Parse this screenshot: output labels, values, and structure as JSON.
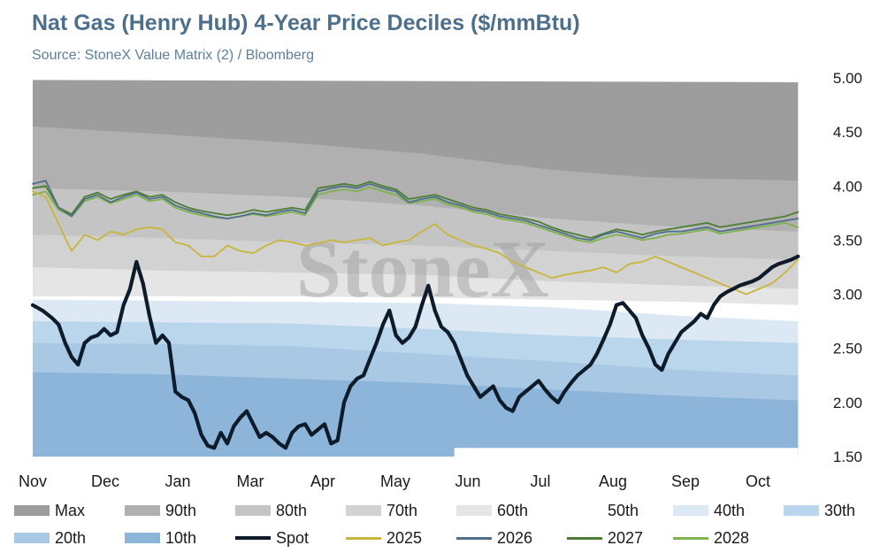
{
  "header": {
    "title": "Nat Gas (Henry Hub) 4-Year Price Deciles ($/mmBtu)",
    "subtitle": "Source: StoneX Value Matrix (2) / Bloomberg"
  },
  "watermark": "StoneX",
  "chart_data": {
    "type": "area",
    "title": "Nat Gas (Henry Hub) 4-Year Price Deciles ($/mmBtu)",
    "subtitle": "Source: StoneX Value Matrix (2) / Bloomberg",
    "x_tick_labels": [
      "Nov",
      "Dec",
      "Jan",
      "Mar",
      "Apr",
      "May",
      "Jun",
      "Jul",
      "Aug",
      "Sep",
      "Oct"
    ],
    "x_range": [
      0,
      12
    ],
    "y_tick_labels": [
      "5.00",
      "4.50",
      "4.00",
      "3.50",
      "3.00",
      "2.50",
      "2.00",
      "1.50"
    ],
    "ylim": [
      1.5,
      5.0
    ],
    "y_axis_position": "right",
    "grid": false,
    "legend_position": "bottom",
    "deciles": [
      {
        "name": "Max",
        "color": "#9d9d9d",
        "x": [
          0,
          11.8
        ],
        "values": [
          4.98,
          4.96
        ]
      },
      {
        "name": "90th",
        "color": "#b0b0b0",
        "x": [
          0,
          2,
          4,
          6,
          8,
          9.5,
          11.8
        ],
        "values": [
          4.55,
          4.48,
          4.4,
          4.3,
          4.15,
          4.08,
          4.05
        ]
      },
      {
        "name": "80th",
        "color": "#c4c4c4",
        "x": [
          0,
          2,
          4,
          6,
          8,
          10,
          11.8
        ],
        "values": [
          3.98,
          3.95,
          3.9,
          3.82,
          3.7,
          3.62,
          3.58
        ]
      },
      {
        "name": "70th",
        "color": "#d2d2d2",
        "x": [
          0,
          2,
          4,
          6,
          8,
          10,
          11.8
        ],
        "values": [
          3.55,
          3.52,
          3.48,
          3.45,
          3.4,
          3.35,
          3.32
        ]
      },
      {
        "name": "60th",
        "color": "#e5e5e5",
        "x": [
          0,
          2,
          4,
          6,
          8,
          10,
          11.8
        ],
        "values": [
          3.25,
          3.22,
          3.2,
          3.18,
          3.12,
          3.08,
          3.05
        ]
      },
      {
        "name": "50th",
        "color": "#ffffff",
        "x": [
          0,
          2,
          4,
          6,
          8,
          10,
          11.8
        ],
        "values": [
          2.98,
          2.98,
          2.98,
          2.97,
          2.95,
          2.93,
          2.9
        ]
      },
      {
        "name": "40th",
        "color": "#dce9f5",
        "x": [
          0,
          2,
          4,
          6,
          8,
          10,
          11.8
        ],
        "values": [
          2.95,
          2.94,
          2.93,
          2.92,
          2.88,
          2.8,
          2.75
        ]
      },
      {
        "name": "30th",
        "color": "#bad6ec",
        "x": [
          0,
          2,
          4,
          6,
          8,
          10,
          11.8
        ],
        "values": [
          2.75,
          2.74,
          2.73,
          2.68,
          2.62,
          2.58,
          2.55
        ]
      },
      {
        "name": "20th",
        "color": "#a9c8e3",
        "x": [
          0,
          2,
          4,
          6,
          8,
          10,
          11.8
        ],
        "values": [
          2.55,
          2.54,
          2.52,
          2.45,
          2.38,
          2.3,
          2.25
        ]
      },
      {
        "name": "10th",
        "color": "#8db5da",
        "x": [
          0,
          2,
          4,
          6,
          8,
          10,
          11.8
        ],
        "values": [
          2.28,
          2.26,
          2.22,
          2.18,
          2.12,
          2.06,
          2.02
        ]
      }
    ],
    "floor": {
      "x": [
        0,
        6.5,
        6.5,
        11.8
      ],
      "values": [
        1.5,
        1.5,
        1.58,
        1.58
      ]
    },
    "series": [
      {
        "name": "Spot",
        "color": "#0d1b2a",
        "stroke_width": 4.2,
        "x": [
          0,
          0.15,
          0.3,
          0.4,
          0.5,
          0.6,
          0.7,
          0.8,
          0.9,
          1.0,
          1.1,
          1.2,
          1.3,
          1.4,
          1.5,
          1.6,
          1.65,
          1.7,
          1.8,
          1.9,
          2.0,
          2.1,
          2.2,
          2.3,
          2.4,
          2.5,
          2.6,
          2.7,
          2.8,
          2.9,
          3.0,
          3.1,
          3.2,
          3.3,
          3.4,
          3.5,
          3.6,
          3.7,
          3.8,
          3.9,
          4.0,
          4.1,
          4.2,
          4.3,
          4.4,
          4.5,
          4.6,
          4.7,
          4.8,
          4.9,
          5.0,
          5.1,
          5.2,
          5.3,
          5.4,
          5.5,
          5.6,
          5.7,
          5.8,
          5.9,
          6.0,
          6.1,
          6.2,
          6.3,
          6.4,
          6.5,
          6.6,
          6.7,
          6.8,
          6.9,
          7.0,
          7.1,
          7.2,
          7.3,
          7.4,
          7.5,
          7.6,
          7.7,
          7.8,
          7.9,
          8.0,
          8.1,
          8.2,
          8.3,
          8.4,
          8.5,
          8.6,
          8.7,
          8.8,
          8.9,
          9.0,
          9.1,
          9.2,
          9.3,
          9.4,
          9.5,
          9.6,
          9.7,
          9.8,
          9.9,
          10.0,
          10.1,
          10.2,
          10.3,
          10.4,
          10.5,
          10.6,
          10.7,
          10.8,
          10.9,
          11.0,
          11.1,
          11.2,
          11.3,
          11.4,
          11.5,
          11.6,
          11.7,
          11.8
        ],
        "values": [
          2.9,
          2.85,
          2.78,
          2.72,
          2.55,
          2.42,
          2.35,
          2.55,
          2.6,
          2.62,
          2.68,
          2.62,
          2.65,
          2.9,
          3.05,
          3.3,
          3.2,
          3.1,
          2.8,
          2.55,
          2.62,
          2.55,
          2.1,
          2.05,
          2.02,
          1.9,
          1.7,
          1.6,
          1.58,
          1.72,
          1.62,
          1.78,
          1.86,
          1.92,
          1.8,
          1.68,
          1.72,
          1.68,
          1.62,
          1.58,
          1.72,
          1.78,
          1.8,
          1.7,
          1.75,
          1.8,
          1.62,
          1.65,
          2.0,
          2.15,
          2.22,
          2.25,
          2.4,
          2.55,
          2.72,
          2.85,
          2.62,
          2.55,
          2.6,
          2.7,
          2.9,
          3.08,
          2.85,
          2.7,
          2.65,
          2.55,
          2.4,
          2.25,
          2.15,
          2.05,
          2.1,
          2.15,
          2.02,
          1.95,
          1.92,
          2.05,
          2.1,
          2.15,
          2.2,
          2.12,
          2.05,
          2.0,
          2.1,
          2.18,
          2.25,
          2.3,
          2.35,
          2.45,
          2.58,
          2.72,
          2.9,
          2.92,
          2.85,
          2.78,
          2.62,
          2.5,
          2.35,
          2.3,
          2.45,
          2.55,
          2.65,
          2.7,
          2.75,
          2.82,
          2.78,
          2.9,
          2.98,
          3.02,
          3.05,
          3.08,
          3.1,
          3.12,
          3.15,
          3.2,
          3.25,
          3.28,
          3.3,
          3.32,
          3.35
        ]
      },
      {
        "name": "2025",
        "color": "#c8b53b",
        "stroke_width": 1.8,
        "x": [
          0,
          0.2,
          0.4,
          0.5,
          0.6,
          0.8,
          1.0,
          1.2,
          1.4,
          1.6,
          1.8,
          2.0,
          2.2,
          2.4,
          2.6,
          2.8,
          3.0,
          3.2,
          3.4,
          3.6,
          3.8,
          4.0,
          4.2,
          4.4,
          4.6,
          4.8,
          5.0,
          5.2,
          5.4,
          5.6,
          5.8,
          6.0,
          6.2,
          6.4,
          6.6,
          6.8,
          7.0,
          7.2,
          7.4,
          7.6,
          7.8,
          8.0,
          8.2,
          8.4,
          8.6,
          8.8,
          9.0,
          9.2,
          9.4,
          9.6,
          9.8,
          10.0,
          10.2,
          10.4,
          10.6,
          10.8,
          11.0,
          11.2,
          11.4,
          11.6,
          11.8
        ],
        "values": [
          3.95,
          3.9,
          3.65,
          3.52,
          3.4,
          3.55,
          3.5,
          3.58,
          3.55,
          3.6,
          3.62,
          3.6,
          3.48,
          3.45,
          3.35,
          3.35,
          3.45,
          3.4,
          3.38,
          3.45,
          3.5,
          3.48,
          3.45,
          3.47,
          3.5,
          3.48,
          3.5,
          3.52,
          3.45,
          3.48,
          3.5,
          3.58,
          3.65,
          3.55,
          3.5,
          3.45,
          3.42,
          3.38,
          3.3,
          3.25,
          3.2,
          3.15,
          3.18,
          3.2,
          3.22,
          3.25,
          3.2,
          3.28,
          3.3,
          3.35,
          3.3,
          3.25,
          3.2,
          3.15,
          3.1,
          3.05,
          3.0,
          3.05,
          3.1,
          3.2,
          3.32
        ]
      },
      {
        "name": "2026",
        "color": "#4f6e8a",
        "stroke_width": 1.8,
        "x": [
          0,
          0.2,
          0.4,
          0.6,
          0.8,
          1.0,
          1.2,
          1.4,
          1.6,
          1.8,
          2.0,
          2.2,
          2.4,
          2.6,
          2.8,
          3.0,
          3.2,
          3.4,
          3.6,
          3.8,
          4.0,
          4.2,
          4.4,
          4.6,
          4.8,
          5.0,
          5.2,
          5.4,
          5.6,
          5.8,
          6.0,
          6.2,
          6.4,
          6.6,
          6.8,
          7.0,
          7.2,
          7.4,
          7.6,
          7.8,
          8.0,
          8.2,
          8.4,
          8.6,
          8.8,
          9.0,
          9.2,
          9.4,
          9.6,
          9.8,
          10.0,
          10.2,
          10.4,
          10.6,
          10.8,
          11.0,
          11.2,
          11.4,
          11.6,
          11.8
        ],
        "values": [
          4.02,
          4.05,
          3.8,
          3.72,
          3.88,
          3.92,
          3.85,
          3.9,
          3.94,
          3.88,
          3.9,
          3.82,
          3.78,
          3.75,
          3.72,
          3.7,
          3.72,
          3.75,
          3.73,
          3.76,
          3.78,
          3.75,
          3.95,
          3.98,
          4.0,
          3.98,
          4.02,
          3.98,
          3.95,
          3.85,
          3.88,
          3.9,
          3.85,
          3.82,
          3.78,
          3.76,
          3.72,
          3.7,
          3.68,
          3.64,
          3.6,
          3.56,
          3.52,
          3.5,
          3.55,
          3.58,
          3.55,
          3.52,
          3.56,
          3.58,
          3.58,
          3.6,
          3.62,
          3.58,
          3.6,
          3.62,
          3.64,
          3.66,
          3.68,
          3.7
        ]
      },
      {
        "name": "2027",
        "color": "#4c7f34",
        "stroke_width": 1.8,
        "x": [
          0,
          0.2,
          0.4,
          0.6,
          0.8,
          1.0,
          1.2,
          1.4,
          1.6,
          1.8,
          2.0,
          2.2,
          2.4,
          2.6,
          2.8,
          3.0,
          3.2,
          3.4,
          3.6,
          3.8,
          4.0,
          4.2,
          4.4,
          4.6,
          4.8,
          5.0,
          5.2,
          5.4,
          5.6,
          5.8,
          6.0,
          6.2,
          6.4,
          6.6,
          6.8,
          7.0,
          7.2,
          7.4,
          7.6,
          7.8,
          8.0,
          8.2,
          8.4,
          8.6,
          8.8,
          9.0,
          9.2,
          9.4,
          9.6,
          9.8,
          10.0,
          10.2,
          10.4,
          10.6,
          10.8,
          11.0,
          11.2,
          11.4,
          11.6,
          11.8
        ],
        "values": [
          3.98,
          4.0,
          3.8,
          3.74,
          3.9,
          3.94,
          3.88,
          3.92,
          3.95,
          3.9,
          3.92,
          3.85,
          3.8,
          3.77,
          3.75,
          3.73,
          3.75,
          3.78,
          3.76,
          3.78,
          3.8,
          3.78,
          3.98,
          4.0,
          4.02,
          4.0,
          4.04,
          4.0,
          3.97,
          3.88,
          3.9,
          3.92,
          3.88,
          3.84,
          3.8,
          3.78,
          3.74,
          3.72,
          3.7,
          3.67,
          3.62,
          3.58,
          3.55,
          3.52,
          3.56,
          3.6,
          3.58,
          3.55,
          3.58,
          3.6,
          3.62,
          3.64,
          3.66,
          3.62,
          3.64,
          3.66,
          3.68,
          3.7,
          3.72,
          3.76
        ]
      },
      {
        "name": "2028",
        "color": "#7fb24c",
        "stroke_width": 1.8,
        "x": [
          0,
          0.2,
          0.4,
          0.6,
          0.8,
          1.0,
          1.2,
          1.4,
          1.6,
          1.8,
          2.0,
          2.2,
          2.4,
          2.6,
          2.8,
          3.0,
          3.2,
          3.4,
          3.6,
          3.8,
          4.0,
          4.2,
          4.4,
          4.6,
          4.8,
          5.0,
          5.2,
          5.4,
          5.6,
          5.8,
          6.0,
          6.2,
          6.4,
          6.6,
          6.8,
          7.0,
          7.2,
          7.4,
          7.6,
          7.8,
          8.0,
          8.2,
          8.4,
          8.6,
          8.8,
          9.0,
          9.2,
          9.4,
          9.6,
          9.8,
          10.0,
          10.2,
          10.4,
          10.6,
          10.8,
          11.0,
          11.2,
          11.4,
          11.6,
          11.8
        ],
        "values": [
          3.92,
          3.95,
          3.78,
          3.72,
          3.86,
          3.9,
          3.84,
          3.88,
          3.92,
          3.86,
          3.88,
          3.8,
          3.76,
          3.73,
          3.71,
          3.7,
          3.72,
          3.74,
          3.72,
          3.74,
          3.76,
          3.73,
          3.92,
          3.95,
          3.97,
          3.95,
          3.99,
          3.95,
          3.92,
          3.84,
          3.86,
          3.88,
          3.83,
          3.8,
          3.76,
          3.74,
          3.7,
          3.68,
          3.66,
          3.62,
          3.58,
          3.54,
          3.5,
          3.48,
          3.52,
          3.55,
          3.53,
          3.5,
          3.52,
          3.55,
          3.56,
          3.58,
          3.6,
          3.56,
          3.58,
          3.6,
          3.62,
          3.64,
          3.66,
          3.62
        ]
      }
    ]
  },
  "legend": {
    "items": [
      {
        "label": "Max",
        "kind": "swatch",
        "color": "#9d9d9d"
      },
      {
        "label": "90th",
        "kind": "swatch",
        "color": "#b0b0b0"
      },
      {
        "label": "80th",
        "kind": "swatch",
        "color": "#c4c4c4"
      },
      {
        "label": "70th",
        "kind": "swatch",
        "color": "#d2d2d2"
      },
      {
        "label": "60th",
        "kind": "swatch",
        "color": "#e5e5e5"
      },
      {
        "label": "50th",
        "kind": "swatch",
        "color": "#ffffff"
      },
      {
        "label": "40th",
        "kind": "swatch",
        "color": "#dce9f5"
      },
      {
        "label": "30th",
        "kind": "swatch",
        "color": "#bad6ec"
      },
      {
        "label": "20th",
        "kind": "swatch",
        "color": "#a9c8e3"
      },
      {
        "label": "10th",
        "kind": "swatch",
        "color": "#8db5da"
      },
      {
        "label": "Spot",
        "kind": "line",
        "color": "#0d1b2a"
      },
      {
        "label": "2025",
        "kind": "line",
        "color": "#c8b53b"
      },
      {
        "label": "2026",
        "kind": "line",
        "color": "#4f6e8a"
      },
      {
        "label": "2027",
        "kind": "line",
        "color": "#4c7f34"
      },
      {
        "label": "2028",
        "kind": "line",
        "color": "#7fb24c"
      }
    ]
  }
}
